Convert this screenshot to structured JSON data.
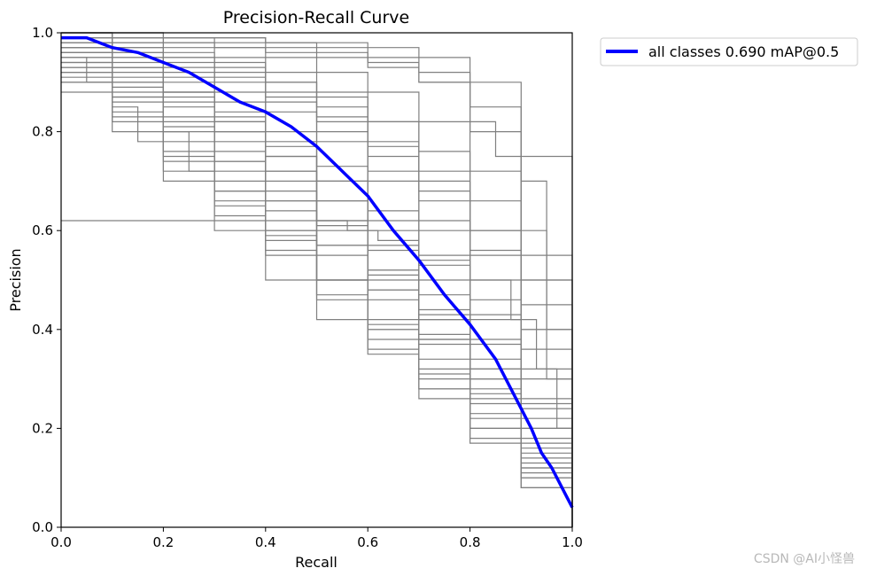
{
  "chart_data": {
    "type": "line",
    "title": "Precision-Recall Curve",
    "xlabel": "Recall",
    "ylabel": "Precision",
    "xlim": [
      0,
      1
    ],
    "ylim": [
      0,
      1
    ],
    "xticks": [
      "0.0",
      "0.2",
      "0.4",
      "0.6",
      "0.8",
      "1.0"
    ],
    "yticks": [
      "0.0",
      "0.2",
      "0.4",
      "0.6",
      "0.8",
      "1.0"
    ],
    "grid": false,
    "legend_position": "outside-top-right",
    "colors": {
      "class_curves": "#808080",
      "summary_curve": "#0000ff"
    },
    "series": [
      {
        "name": "all classes 0.690 mAP@0.5",
        "x": [
          0,
          0.05,
          0.1,
          0.15,
          0.2,
          0.25,
          0.3,
          0.35,
          0.4,
          0.45,
          0.5,
          0.55,
          0.6,
          0.65,
          0.7,
          0.75,
          0.8,
          0.85,
          0.88,
          0.9,
          0.92,
          0.94,
          0.96,
          0.98,
          1.0
        ],
        "y": [
          0.99,
          0.99,
          0.97,
          0.96,
          0.94,
          0.92,
          0.89,
          0.86,
          0.84,
          0.81,
          0.77,
          0.72,
          0.67,
          0.6,
          0.54,
          0.47,
          0.41,
          0.34,
          0.28,
          0.24,
          0.2,
          0.15,
          0.12,
          0.08,
          0.04
        ]
      }
    ],
    "class_curves": [
      {
        "x": [
          0,
          0.5,
          0.56,
          0.62,
          0.7,
          0.8,
          0.88,
          0.93,
          0.97,
          1.0
        ],
        "y": [
          0.62,
          0.62,
          0.6,
          0.58,
          0.55,
          0.5,
          0.42,
          0.32,
          0.2,
          0.0
        ]
      },
      {
        "x": [
          0,
          0.1,
          0.2,
          0.3,
          0.4,
          0.5,
          0.6,
          0.7,
          0.8,
          0.9,
          0.95,
          1.0
        ],
        "y": [
          1.0,
          1.0,
          0.99,
          0.99,
          0.98,
          0.97,
          0.95,
          0.92,
          0.85,
          0.7,
          0.5,
          0.0
        ]
      },
      {
        "x": [
          0,
          0.1,
          0.2,
          0.3,
          0.4,
          0.5,
          0.6,
          0.7,
          0.8,
          0.85,
          0.9,
          0.95,
          1.0
        ],
        "y": [
          1.0,
          0.99,
          0.98,
          0.97,
          0.96,
          0.95,
          0.93,
          0.9,
          0.82,
          0.75,
          0.6,
          0.4,
          0.0
        ]
      },
      {
        "x": [
          0,
          0.1,
          0.2,
          0.3,
          0.4,
          0.5,
          0.6,
          0.7,
          0.8,
          0.9,
          0.95,
          1.0
        ],
        "y": [
          0.98,
          0.97,
          0.95,
          0.93,
          0.9,
          0.87,
          0.82,
          0.76,
          0.66,
          0.5,
          0.3,
          0.0
        ]
      },
      {
        "x": [
          0,
          0.1,
          0.2,
          0.3,
          0.4,
          0.5,
          0.6,
          0.7,
          0.8,
          0.9,
          1.0
        ],
        "y": [
          0.97,
          0.95,
          0.92,
          0.88,
          0.84,
          0.78,
          0.7,
          0.6,
          0.46,
          0.25,
          0.0
        ]
      },
      {
        "x": [
          0,
          0.1,
          0.2,
          0.3,
          0.4,
          0.5,
          0.6,
          0.7,
          0.8,
          0.9,
          1.0
        ],
        "y": [
          0.96,
          0.93,
          0.88,
          0.82,
          0.75,
          0.66,
          0.56,
          0.44,
          0.3,
          0.15,
          0.0
        ]
      },
      {
        "x": [
          0,
          0.05,
          0.1,
          0.2,
          0.3,
          0.4,
          0.5,
          0.6,
          0.7,
          0.8,
          0.9,
          1.0
        ],
        "y": [
          0.95,
          0.9,
          0.82,
          0.75,
          0.68,
          0.6,
          0.5,
          0.4,
          0.3,
          0.2,
          0.1,
          0.0
        ]
      },
      {
        "x": [
          0,
          0.1,
          0.2,
          0.25,
          0.3,
          0.4,
          0.5,
          0.6,
          0.7,
          0.8,
          0.9,
          1.0
        ],
        "y": [
          0.95,
          0.9,
          0.8,
          0.72,
          0.63,
          0.55,
          0.47,
          0.38,
          0.28,
          0.18,
          0.08,
          0.0
        ]
      },
      {
        "x": [
          0,
          0.1,
          0.15,
          0.2,
          0.3,
          0.4,
          0.5,
          0.6,
          0.7,
          0.8,
          0.9,
          1.0
        ],
        "y": [
          0.9,
          0.85,
          0.78,
          0.72,
          0.65,
          0.56,
          0.46,
          0.36,
          0.26,
          0.17,
          0.08,
          0.0
        ]
      },
      {
        "x": [
          0,
          0.1,
          0.2,
          0.3,
          0.4,
          0.5,
          0.6,
          0.7,
          0.8,
          0.9,
          1.0
        ],
        "y": [
          0.93,
          0.9,
          0.86,
          0.8,
          0.72,
          0.62,
          0.5,
          0.38,
          0.26,
          0.12,
          0.0
        ]
      },
      {
        "x": [
          0,
          0.1,
          0.2,
          0.3,
          0.4,
          0.5,
          0.6,
          0.7,
          0.8,
          0.9,
          1.0
        ],
        "y": [
          0.99,
          0.98,
          0.97,
          0.95,
          0.92,
          0.88,
          0.82,
          0.72,
          0.6,
          0.4,
          0.0
        ]
      },
      {
        "x": [
          0,
          0.1,
          0.2,
          0.3,
          0.4,
          0.5,
          0.6,
          0.7,
          0.8,
          0.9,
          1.0
        ],
        "y": [
          0.98,
          0.96,
          0.93,
          0.9,
          0.86,
          0.8,
          0.72,
          0.62,
          0.5,
          0.32,
          0.0
        ]
      },
      {
        "x": [
          0,
          0.1,
          0.2,
          0.3,
          0.4,
          0.5,
          0.6,
          0.7,
          0.8,
          0.9,
          1.0
        ],
        "y": [
          0.97,
          0.94,
          0.9,
          0.84,
          0.78,
          0.7,
          0.6,
          0.5,
          0.38,
          0.22,
          0.0
        ]
      },
      {
        "x": [
          0,
          0.1,
          0.2,
          0.3,
          0.4,
          0.5,
          0.6,
          0.7,
          0.8,
          0.9,
          1.0
        ],
        "y": [
          0.96,
          0.92,
          0.87,
          0.8,
          0.72,
          0.62,
          0.52,
          0.42,
          0.32,
          0.18,
          0.0
        ]
      },
      {
        "x": [
          0,
          0.1,
          0.2,
          0.3,
          0.4,
          0.5,
          0.6,
          0.7,
          0.8,
          0.9,
          1.0
        ],
        "y": [
          0.94,
          0.88,
          0.82,
          0.74,
          0.66,
          0.57,
          0.48,
          0.38,
          0.27,
          0.14,
          0.0
        ]
      },
      {
        "x": [
          0,
          0.1,
          0.2,
          0.3,
          0.4,
          0.5,
          0.6,
          0.7,
          0.8,
          0.9,
          1.0
        ],
        "y": [
          0.92,
          0.86,
          0.78,
          0.7,
          0.6,
          0.5,
          0.4,
          0.31,
          0.22,
          0.11,
          0.0
        ]
      },
      {
        "x": [
          0,
          0.1,
          0.2,
          0.3,
          0.4,
          0.5,
          0.6,
          0.7,
          0.8,
          0.9,
          1.0
        ],
        "y": [
          1.0,
          0.99,
          0.99,
          0.98,
          0.97,
          0.96,
          0.94,
          0.9,
          0.8,
          0.55,
          0.0
        ]
      },
      {
        "x": [
          0,
          0.1,
          0.2,
          0.3,
          0.4,
          0.5,
          0.6,
          0.7,
          0.8,
          0.9,
          1.0
        ],
        "y": [
          0.99,
          0.98,
          0.96,
          0.94,
          0.9,
          0.85,
          0.78,
          0.68,
          0.55,
          0.36,
          0.0
        ]
      },
      {
        "x": [
          0,
          0.1,
          0.2,
          0.3,
          0.4,
          0.5,
          0.6,
          0.7,
          0.8,
          0.9,
          1.0
        ],
        "y": [
          0.97,
          0.95,
          0.91,
          0.86,
          0.8,
          0.73,
          0.64,
          0.54,
          0.42,
          0.26,
          0.0
        ]
      },
      {
        "x": [
          0,
          0.1,
          0.2,
          0.3,
          0.4,
          0.5,
          0.6,
          0.7,
          0.8,
          0.9,
          1.0
        ],
        "y": [
          0.95,
          0.91,
          0.85,
          0.78,
          0.7,
          0.61,
          0.52,
          0.43,
          0.34,
          0.2,
          0.0
        ]
      },
      {
        "x": [
          0,
          0.1,
          0.2,
          0.3,
          0.4,
          0.5,
          0.6,
          0.7,
          0.8,
          0.9,
          1.0
        ],
        "y": [
          0.9,
          0.83,
          0.74,
          0.66,
          0.58,
          0.5,
          0.42,
          0.34,
          0.25,
          0.13,
          0.0
        ]
      },
      {
        "x": [
          0,
          0.1,
          0.2,
          0.3,
          0.4,
          0.5,
          0.6,
          0.7,
          0.8,
          0.9,
          1.0
        ],
        "y": [
          0.88,
          0.8,
          0.7,
          0.6,
          0.5,
          0.42,
          0.35,
          0.28,
          0.2,
          0.1,
          0.0
        ]
      },
      {
        "x": [
          0,
          0.1,
          0.2,
          0.3,
          0.4,
          0.5,
          0.6,
          0.7,
          0.8,
          0.9,
          1.0
        ],
        "y": [
          1.0,
          1.0,
          0.99,
          0.99,
          0.98,
          0.98,
          0.97,
          0.95,
          0.9,
          0.75,
          0.0
        ]
      },
      {
        "x": [
          0,
          0.1,
          0.2,
          0.3,
          0.4,
          0.5,
          0.6,
          0.7,
          0.8,
          0.9,
          1.0
        ],
        "y": [
          1.0,
          0.99,
          0.98,
          0.97,
          0.95,
          0.92,
          0.88,
          0.82,
          0.72,
          0.5,
          0.0
        ]
      },
      {
        "x": [
          0,
          0.1,
          0.2,
          0.3,
          0.4,
          0.5,
          0.6,
          0.7,
          0.8,
          0.9,
          1.0
        ],
        "y": [
          0.98,
          0.96,
          0.94,
          0.91,
          0.87,
          0.82,
          0.75,
          0.66,
          0.56,
          0.4,
          0.0
        ]
      },
      {
        "x": [
          0,
          0.1,
          0.2,
          0.3,
          0.4,
          0.5,
          0.6,
          0.7,
          0.8,
          0.9,
          1.0
        ],
        "y": [
          0.97,
          0.93,
          0.88,
          0.82,
          0.75,
          0.66,
          0.57,
          0.47,
          0.37,
          0.24,
          0.0
        ]
      },
      {
        "x": [
          0,
          0.1,
          0.2,
          0.3,
          0.4,
          0.5,
          0.6,
          0.7,
          0.8,
          0.9,
          1.0
        ],
        "y": [
          0.93,
          0.87,
          0.8,
          0.72,
          0.64,
          0.55,
          0.46,
          0.37,
          0.28,
          0.16,
          0.0
        ]
      },
      {
        "x": [
          0,
          0.1,
          0.2,
          0.3,
          0.4,
          0.5,
          0.6,
          0.7,
          0.8,
          0.9,
          1.0
        ],
        "y": [
          0.91,
          0.84,
          0.76,
          0.68,
          0.59,
          0.5,
          0.41,
          0.32,
          0.23,
          0.12,
          0.0
        ]
      },
      {
        "x": [
          0,
          0.1,
          0.2,
          0.3,
          0.4,
          0.5,
          0.6,
          0.7,
          0.8,
          0.9,
          1.0
        ],
        "y": [
          0.99,
          0.97,
          0.95,
          0.92,
          0.88,
          0.83,
          0.77,
          0.7,
          0.6,
          0.45,
          0.0
        ]
      },
      {
        "x": [
          0,
          0.1,
          0.2,
          0.3,
          0.4,
          0.5,
          0.6,
          0.7,
          0.8,
          0.9,
          1.0
        ],
        "y": [
          0.96,
          0.93,
          0.88,
          0.83,
          0.77,
          0.7,
          0.62,
          0.53,
          0.43,
          0.3,
          0.0
        ]
      },
      {
        "x": [
          0,
          0.1,
          0.2,
          0.3,
          0.4,
          0.5,
          0.6,
          0.7,
          0.8,
          0.9,
          1.0
        ],
        "y": [
          0.94,
          0.89,
          0.83,
          0.76,
          0.68,
          0.6,
          0.51,
          0.42,
          0.32,
          0.2,
          0.0
        ]
      },
      {
        "x": [
          0,
          0.1,
          0.2,
          0.3,
          0.4,
          0.5,
          0.6,
          0.7,
          0.8,
          0.9,
          1.0
        ],
        "y": [
          0.92,
          0.87,
          0.81,
          0.74,
          0.66,
          0.57,
          0.48,
          0.39,
          0.3,
          0.17,
          0.0
        ]
      }
    ]
  },
  "watermark": "CSDN @AI小怪兽"
}
